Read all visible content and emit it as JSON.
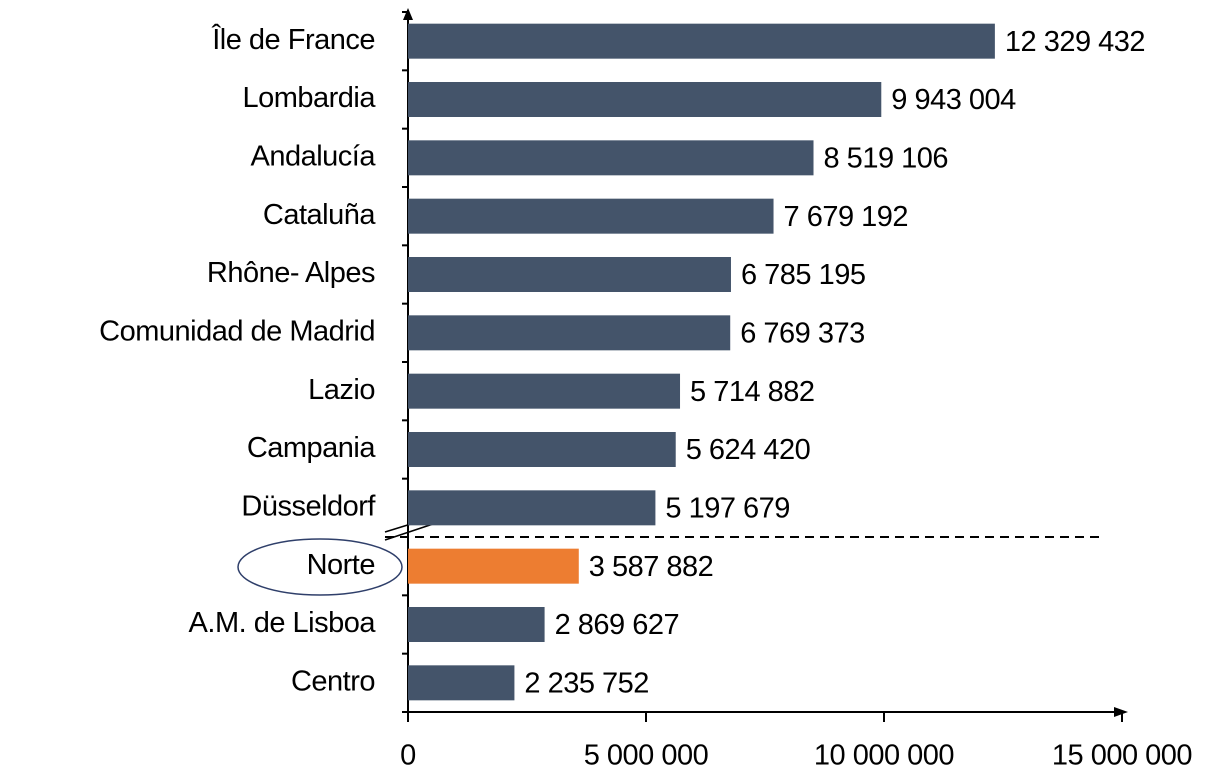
{
  "chart_data": {
    "type": "barh",
    "categories": [
      "Île de France",
      "Lombardia",
      "Andalucía",
      "Cataluña",
      "Rhône- Alpes",
      "Comunidad de Madrid",
      "Lazio",
      "Campania",
      "Düsseldorf",
      "Norte",
      "A.M. de Lisboa",
      "Centro"
    ],
    "values": [
      12329432,
      9943004,
      8519106,
      7679192,
      6785195,
      6769373,
      5714882,
      5624420,
      5197679,
      3587882,
      2869627,
      2235752
    ],
    "value_labels": [
      "12 329 432",
      "9 943 004",
      "8 519 106",
      "7 679 192",
      "6 785 195",
      "6 769 373",
      "5 714 882",
      "5 624 420",
      "5 197 679",
      "3 587 882",
      "2 869 627",
      "2 235 752"
    ],
    "colors": [
      "#44546a",
      "#44546a",
      "#44546a",
      "#44546a",
      "#44546a",
      "#44546a",
      "#44546a",
      "#44546a",
      "#44546a",
      "#ed7d31",
      "#44546a",
      "#44546a"
    ],
    "xlim": [
      0,
      15000000
    ],
    "xticks": [
      0,
      {
        "value": 5000000,
        "label": "5 000 000"
      },
      {
        "value": 10000000,
        "label": "10 000 000"
      },
      {
        "value": 15000000,
        "label": "15 000 000"
      }
    ]
  }
}
